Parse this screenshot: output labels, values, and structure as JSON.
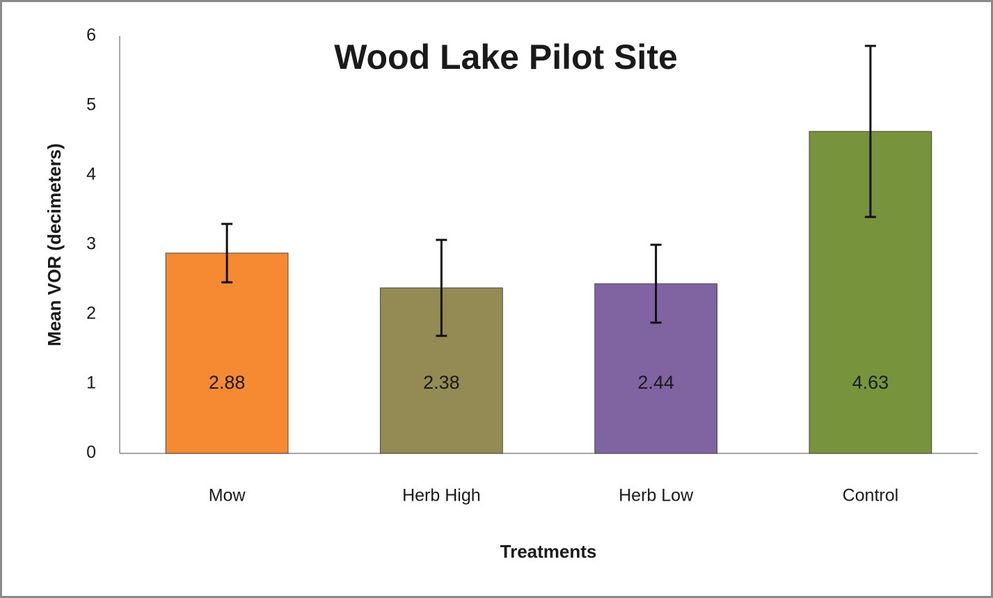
{
  "chart_data": {
    "type": "bar",
    "title": "Wood Lake Pilot Site",
    "x_label": "Treatments",
    "y_label": "Mean VOR (decimeters)",
    "categories": [
      "Mow",
      "Herb High",
      "Herb Low",
      "Control"
    ],
    "values": [
      2.88,
      2.38,
      2.44,
      4.63
    ],
    "errors": [
      0.42,
      0.69,
      0.56,
      1.23
    ],
    "colors": [
      "#f58a33",
      "#948a54",
      "#8064a2",
      "#77933c"
    ],
    "ylim": [
      0,
      6
    ],
    "yticks": [
      0,
      1,
      2,
      3,
      4,
      5,
      6
    ],
    "grid": false
  }
}
